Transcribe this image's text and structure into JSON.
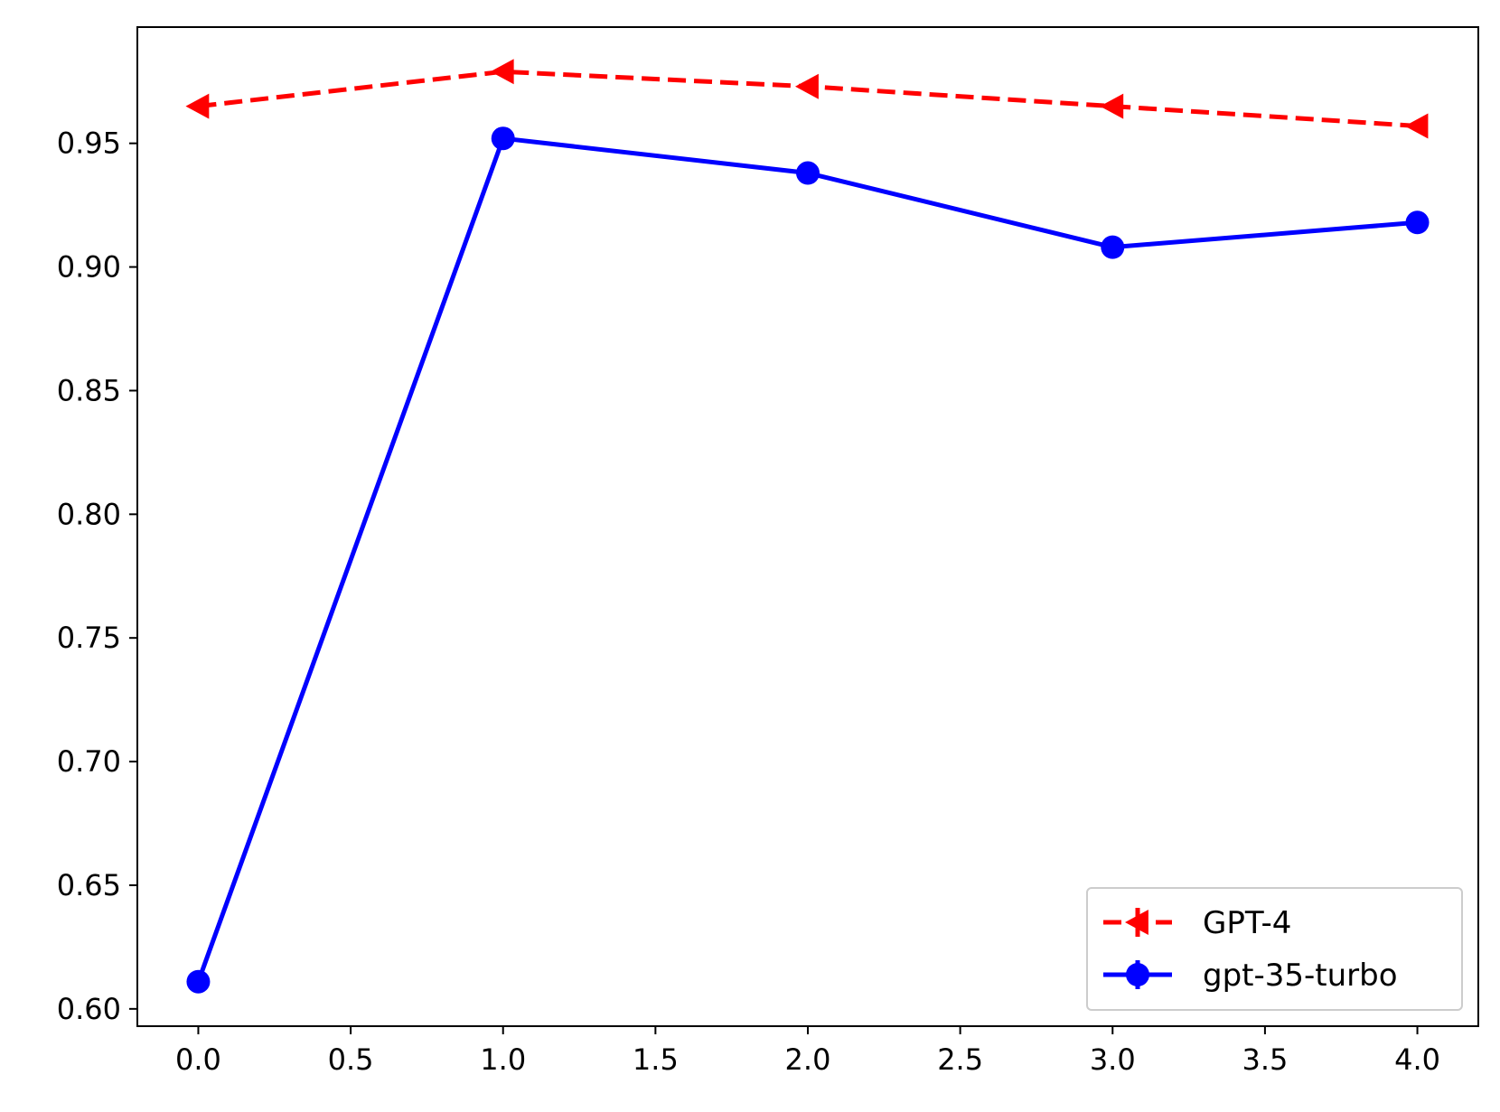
{
  "chart_data": {
    "type": "line",
    "title": "",
    "xlabel": "",
    "ylabel": "",
    "x": [
      0,
      1,
      2,
      3,
      4
    ],
    "xlim": [
      -0.2,
      4.2
    ],
    "ylim": [
      0.593,
      0.997
    ],
    "xticks": [
      0,
      0.5,
      1,
      1.5,
      2,
      2.5,
      3,
      3.5,
      4
    ],
    "xtick_labels": [
      "0.0",
      "0.5",
      "1.0",
      "1.5",
      "2.0",
      "2.5",
      "3.0",
      "3.5",
      "4.0"
    ],
    "yticks": [
      0.6,
      0.65,
      0.7,
      0.75,
      0.8,
      0.85,
      0.9,
      0.95
    ],
    "ytick_labels": [
      "0.60",
      "0.65",
      "0.70",
      "0.75",
      "0.80",
      "0.85",
      "0.90",
      "0.95"
    ],
    "grid": false,
    "legend_position": "lower-right",
    "series": [
      {
        "name": "GPT-4",
        "values": [
          0.965,
          0.979,
          0.973,
          0.965,
          0.957
        ],
        "color": "#ff0000",
        "line_style": "dashed",
        "marker": "triangle-left"
      },
      {
        "name": "gpt-35-turbo",
        "values": [
          0.611,
          0.952,
          0.938,
          0.908,
          0.918
        ],
        "color": "#0000ff",
        "line_style": "solid",
        "marker": "circle"
      }
    ]
  }
}
